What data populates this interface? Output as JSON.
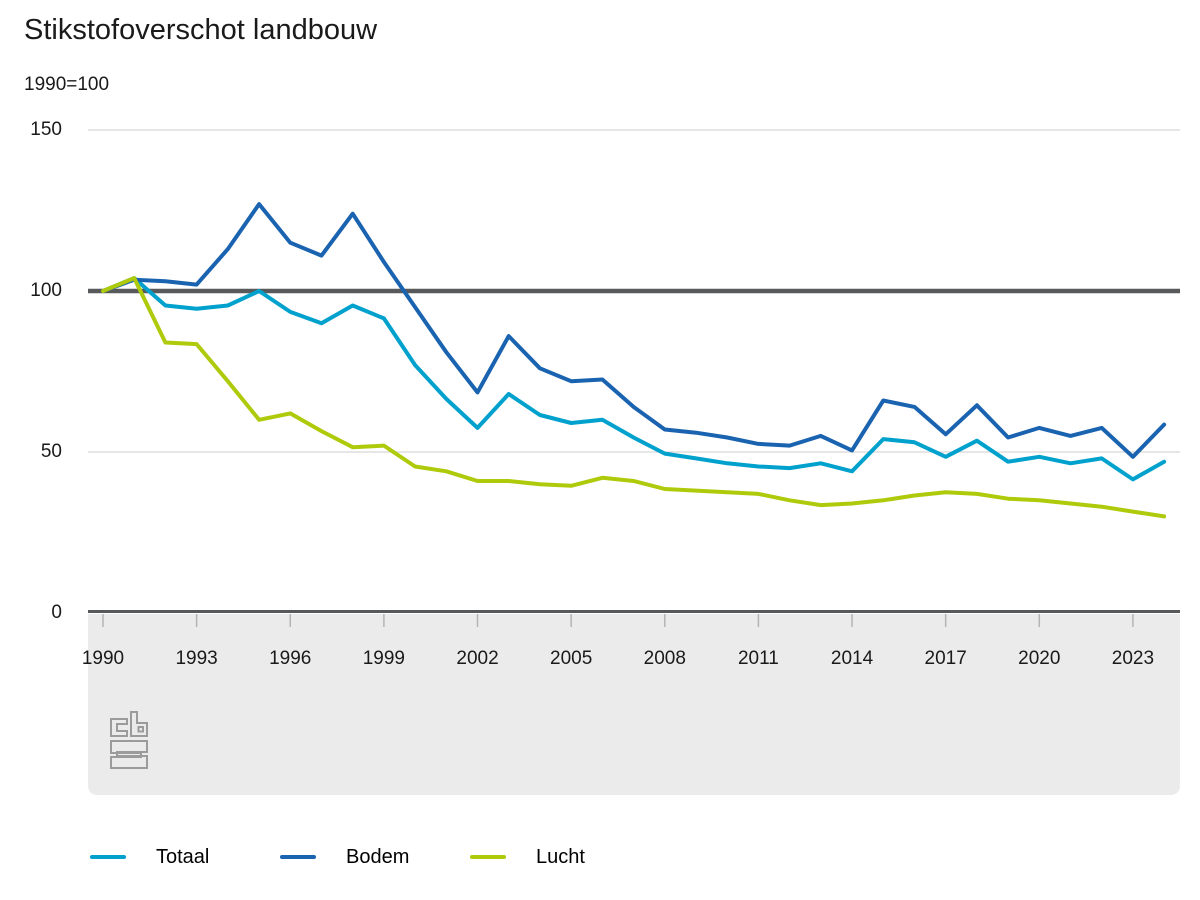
{
  "header": {
    "title": "Stikstofoverschot landbouw",
    "subtitle": "1990=100"
  },
  "chart_data": {
    "type": "line",
    "title": "Stikstofoverschot landbouw",
    "unit_note": "1990=100",
    "grid": "horizontal",
    "legend_position": "bottom",
    "ylim": [
      0,
      150
    ],
    "yticks": [
      "0",
      "50",
      "100",
      "150"
    ],
    "ytick_values": [
      0,
      50,
      100,
      150
    ],
    "baseline_value": 100,
    "xticks": [
      "1990",
      "1993",
      "1996",
      "1999",
      "2002",
      "2005",
      "2008",
      "2011",
      "2014",
      "2017",
      "2020",
      "2023"
    ],
    "xtick_values": [
      1990,
      1993,
      1996,
      1999,
      2002,
      2005,
      2008,
      2011,
      2014,
      2017,
      2020,
      2023
    ],
    "x": [
      1990,
      1991,
      1992,
      1993,
      1994,
      1995,
      1996,
      1997,
      1998,
      1999,
      2000,
      2001,
      2002,
      2003,
      2004,
      2005,
      2006,
      2007,
      2008,
      2009,
      2010,
      2011,
      2012,
      2013,
      2014,
      2015,
      2016,
      2017,
      2018,
      2019,
      2020,
      2021,
      2022,
      2023,
      2024
    ],
    "series": [
      {
        "name": "Totaal",
        "color": "#00a1cd",
        "values": [
          100,
          104,
          95.5,
          94.5,
          95.5,
          100,
          93.5,
          90,
          95.5,
          91.5,
          77,
          66.5,
          57.5,
          68,
          61.5,
          59,
          60,
          54.5,
          49.5,
          48,
          46.5,
          45.5,
          45,
          46.5,
          44,
          54,
          53,
          48.5,
          53.5,
          47,
          48.5,
          46.5,
          48,
          41.5,
          47
        ]
      },
      {
        "name": "Bodem",
        "color": "#1a63b0",
        "values": [
          100,
          103.5,
          103,
          102,
          113,
          127,
          115,
          111,
          124,
          109,
          95,
          81,
          68.5,
          86,
          76,
          72,
          72.5,
          64,
          57,
          56,
          54.5,
          52.5,
          52,
          55,
          50.5,
          66,
          64,
          55.5,
          64.5,
          54.5,
          57.5,
          55,
          57.5,
          48.5,
          58.5
        ]
      },
      {
        "name": "Lucht",
        "color": "#afca0b",
        "values": [
          100,
          104,
          84,
          83.5,
          72,
          60,
          62,
          56.5,
          51.5,
          52,
          45.5,
          44,
          41,
          41,
          40,
          39.5,
          42,
          41,
          38.5,
          38,
          37.5,
          37,
          35,
          33.5,
          34,
          35,
          36.5,
          37.5,
          37,
          35.5,
          35,
          34,
          33,
          31.5,
          30
        ]
      }
    ],
    "styling": {
      "baseline_color": "#58595b",
      "axis_color": "#58595b",
      "gridline_color": "#d6d6d6",
      "band_color": "#ebebeb",
      "tick_color": "#b4b4b4"
    }
  },
  "branding": {
    "logo_name": "cbs-logo"
  }
}
